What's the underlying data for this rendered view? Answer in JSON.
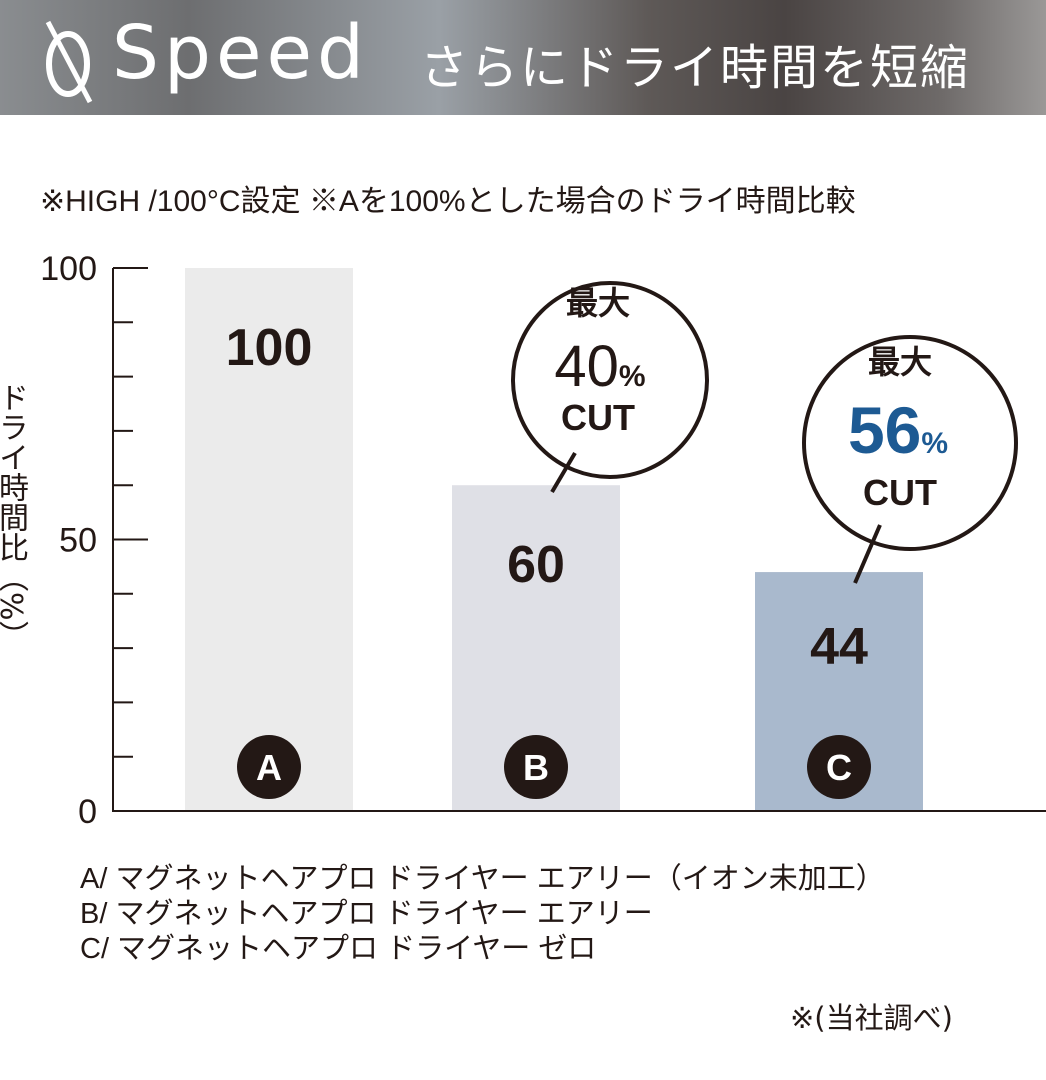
{
  "header": {
    "logo_letter": "Q",
    "title": "Speed",
    "subtitle": "さらにドライ時間を短縮"
  },
  "note": "※HIGH /100°C設定 ※Aを100%とした場合のドライ時間比較",
  "legend": [
    "A/ マグネットヘアプロ ドライヤー エアリー（イオン未加工）",
    "B/ マグネットヘアプロ ドライヤー エアリー",
    "C/ マグネットヘアプロ ドライヤー ゼロ"
  ],
  "source": "※(当社調べ)",
  "colors": {
    "bar_a": "#ebebeb",
    "bar_b": "#dfe0e6",
    "bar_c": "#a9b9cd",
    "accent": "#1d5a93",
    "text": "#231815"
  },
  "chart_data": {
    "type": "bar",
    "ylabel": "ドライ時間比（%）",
    "ylim": [
      0,
      100
    ],
    "yticks": [
      "0",
      "50",
      "100"
    ],
    "minor_tick_step": 10,
    "categories": [
      "A",
      "B",
      "C"
    ],
    "values": [
      100,
      60,
      44
    ],
    "value_labels": [
      "100",
      "60",
      "44"
    ],
    "callouts": [
      {
        "category": "B",
        "line1": "最大",
        "value": "40",
        "unit": "%",
        "line3": "CUT"
      },
      {
        "category": "C",
        "line1": "最大",
        "value": "56",
        "unit": "%",
        "line3": "CUT"
      }
    ]
  }
}
